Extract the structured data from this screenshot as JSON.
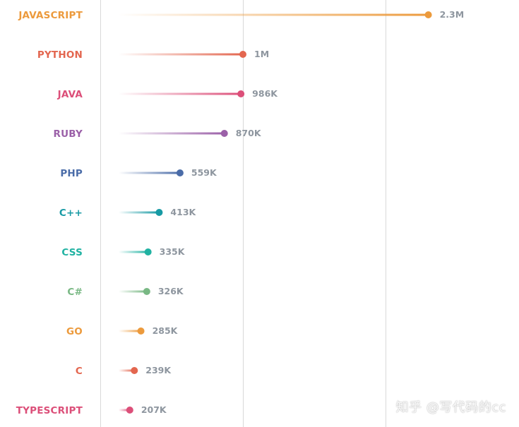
{
  "chart_data": {
    "type": "lollipop",
    "title": "",
    "xlabel": "",
    "ylabel": "",
    "xlim": [
      0,
      3000000
    ],
    "grid": "vertical",
    "legend": "none",
    "categories": [
      "JAVASCRIPT",
      "PYTHON",
      "JAVA",
      "RUBY",
      "PHP",
      "C++",
      "CSS",
      "C#",
      "GO",
      "C",
      "TYPESCRIPT"
    ],
    "values": [
      2300000,
      1000000,
      986000,
      870000,
      559000,
      413000,
      335000,
      326000,
      285000,
      239000,
      207000
    ],
    "value_labels": [
      "2.3M",
      "1M",
      "986K",
      "870K",
      "559K",
      "413K",
      "335K",
      "326K",
      "285K",
      "239K",
      "207K"
    ],
    "colors": [
      "#ec9a3c",
      "#e3664f",
      "#dc4f79",
      "#9b60a8",
      "#4a6ca8",
      "#179aa4",
      "#20b2a2",
      "#79b884",
      "#ec9a3c",
      "#e3664f",
      "#dc4f79"
    ]
  },
  "watermark": "知乎 @写代码的cc"
}
